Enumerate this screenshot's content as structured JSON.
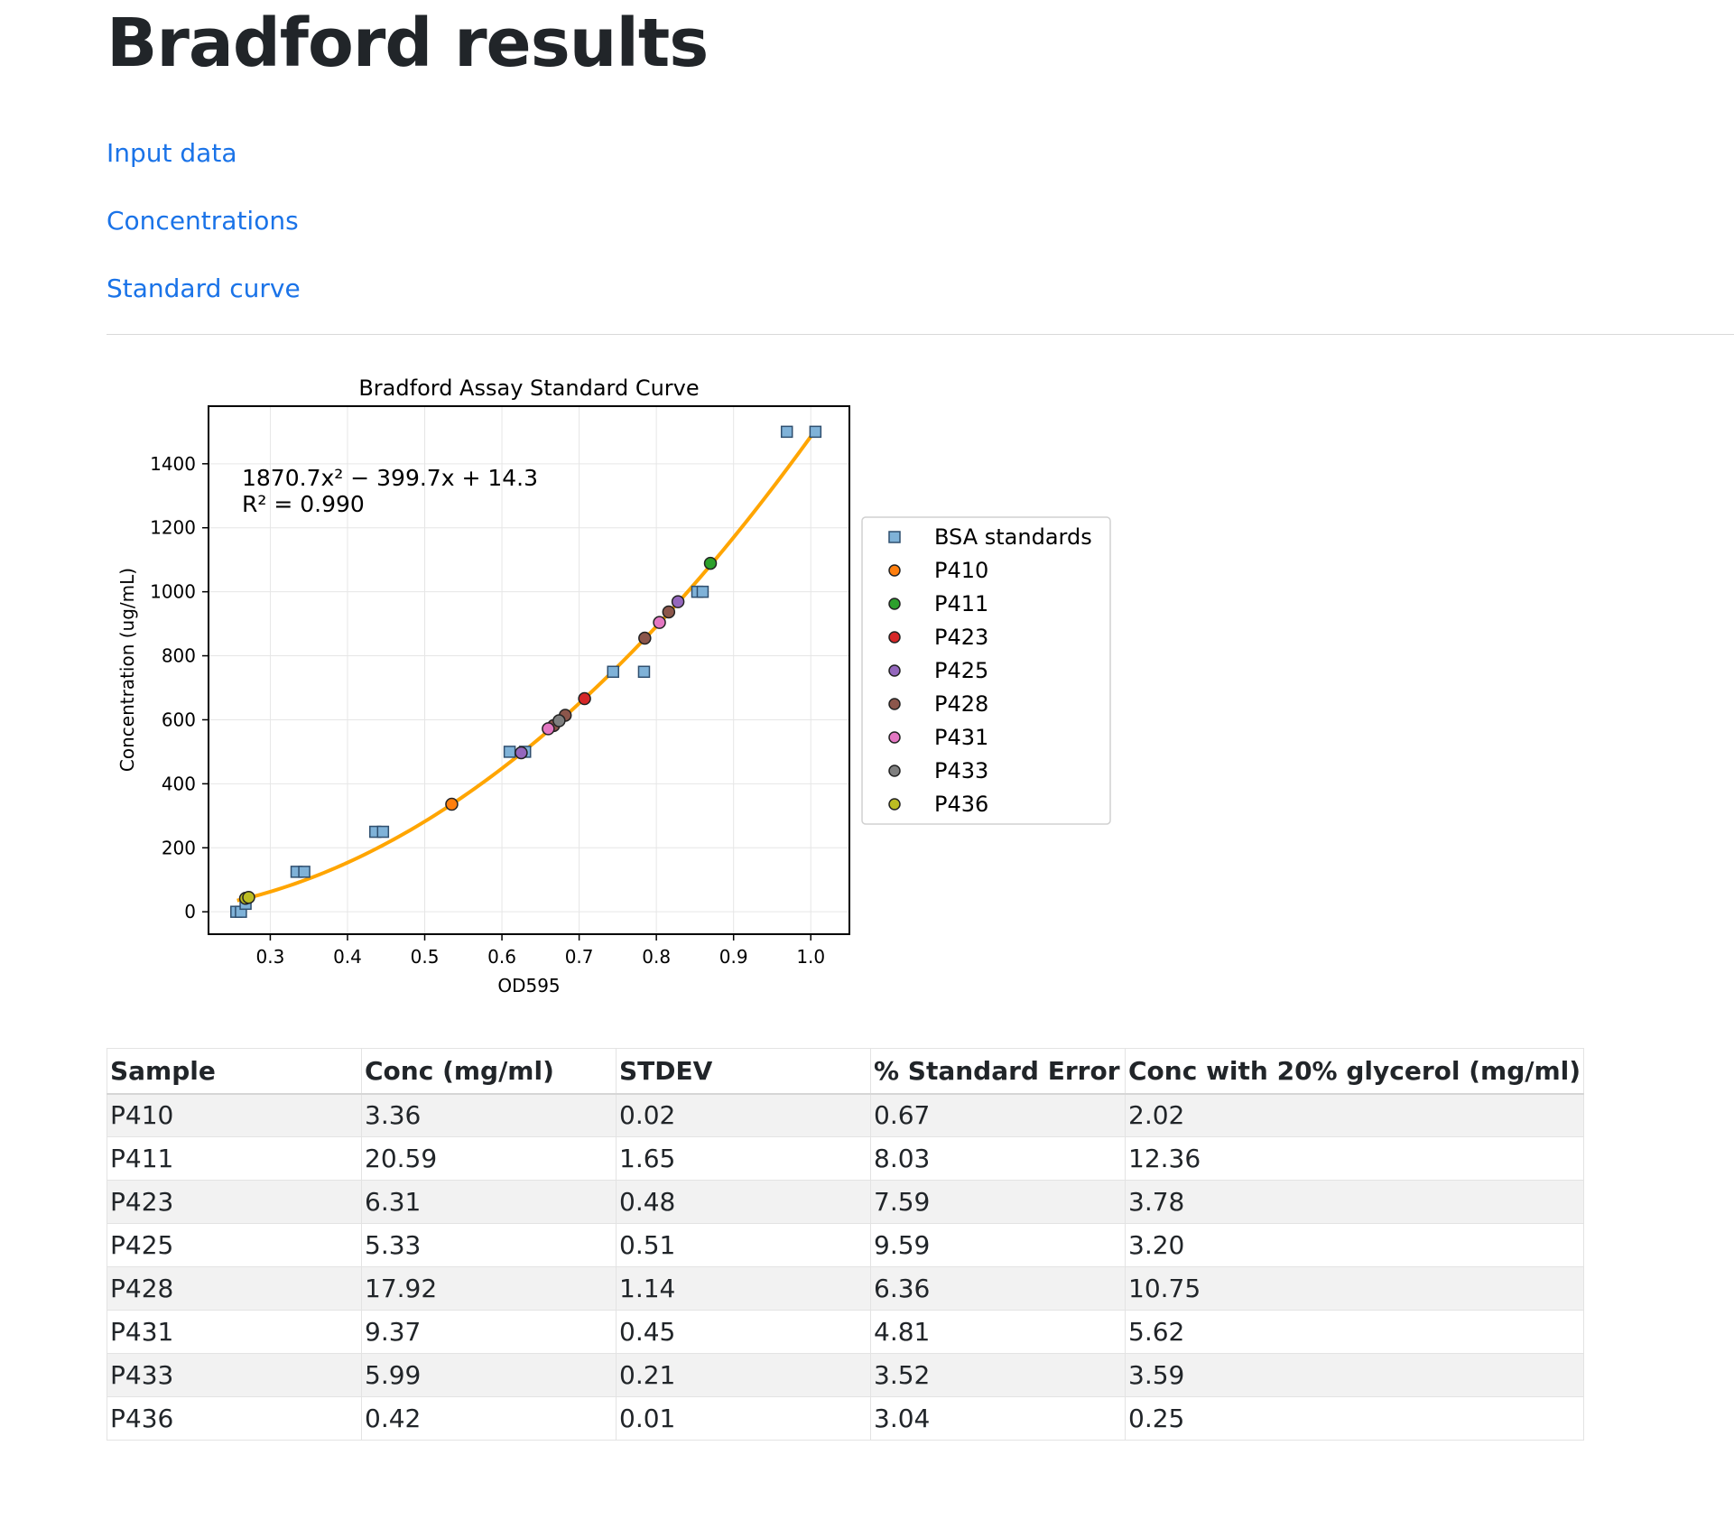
{
  "page": {
    "title": "Bradford results",
    "nav_links": [
      "Input data",
      "Concentrations",
      "Standard curve"
    ]
  },
  "chart_data": {
    "type": "scatter",
    "title": "Bradford Assay Standard Curve",
    "xlabel": "OD595",
    "ylabel": "Concentration (ug/mL)",
    "xlim": [
      0.22,
      1.05
    ],
    "ylim": [
      -70,
      1580
    ],
    "x_ticks": [
      0.3,
      0.4,
      0.5,
      0.6,
      0.7,
      0.8,
      0.9,
      1.0
    ],
    "x_tick_labels": [
      "0.3",
      "0.4",
      "0.5",
      "0.6",
      "0.7",
      "0.8",
      "0.9",
      "1.0"
    ],
    "y_ticks": [
      0,
      200,
      400,
      600,
      800,
      1000,
      1200,
      1400
    ],
    "y_tick_labels": [
      "0",
      "200",
      "400",
      "600",
      "800",
      "1000",
      "1200",
      "1400"
    ],
    "grid": true,
    "legend_position": "outside-right",
    "equation_text": "1870.7x² − 399.7x + 14.3",
    "r2_text": "R² = 0.990",
    "fit": {
      "a": 1870.7,
      "b": -399.7,
      "c": 14.3,
      "x_range": [
        0.257,
        1.007
      ],
      "color": "#ffa500"
    },
    "series": [
      {
        "name": "BSA standards",
        "marker": "square",
        "color": "#7fb2d8",
        "x": [
          0.256,
          0.262,
          0.268,
          0.334,
          0.344,
          0.436,
          0.446,
          0.61,
          0.63,
          0.744,
          0.784,
          0.853,
          0.86,
          0.969,
          1.006
        ],
        "y": [
          0,
          0,
          25,
          125,
          125,
          250,
          250,
          500,
          500,
          750,
          750,
          1000,
          1000,
          1500,
          1500
        ]
      },
      {
        "name": "P410",
        "marker": "circle",
        "color": "#ff7f0e",
        "x": [
          0.535
        ],
        "y": [
          336
        ]
      },
      {
        "name": "P411",
        "marker": "circle",
        "color": "#2ca02c",
        "x": [
          0.87
        ],
        "y": [
          1089
        ]
      },
      {
        "name": "P423",
        "marker": "circle",
        "color": "#d62728",
        "x": [
          0.707
        ],
        "y": [
          666
        ]
      },
      {
        "name": "P425",
        "marker": "circle",
        "color": "#9467bd",
        "x": [
          0.625,
          0.828
        ],
        "y": [
          497,
          969
        ]
      },
      {
        "name": "P428",
        "marker": "circle",
        "color": "#8c564b",
        "x": [
          0.667,
          0.682,
          0.785,
          0.816
        ],
        "y": [
          582,
          614,
          855,
          937
        ]
      },
      {
        "name": "P431",
        "marker": "circle",
        "color": "#e377c2",
        "x": [
          0.66,
          0.804
        ],
        "y": [
          572,
          904
        ]
      },
      {
        "name": "P433",
        "marker": "circle",
        "color": "#7f7f7f",
        "x": [
          0.674
        ],
        "y": [
          597
        ]
      },
      {
        "name": "P436",
        "marker": "circle",
        "color": "#bcbd22",
        "x": [
          0.268,
          0.272
        ],
        "y": [
          42,
          45
        ]
      }
    ]
  },
  "table": {
    "headers": [
      "Sample",
      "Conc (mg/ml)",
      "STDEV",
      "% Standard Error",
      "Conc with 20% glycerol (mg/ml)"
    ],
    "rows": [
      [
        "P410",
        "3.36",
        "0.02",
        "0.67",
        "2.02"
      ],
      [
        "P411",
        "20.59",
        "1.65",
        "8.03",
        "12.36"
      ],
      [
        "P423",
        "6.31",
        "0.48",
        "7.59",
        "3.78"
      ],
      [
        "P425",
        "5.33",
        "0.51",
        "9.59",
        "3.20"
      ],
      [
        "P428",
        "17.92",
        "1.14",
        "6.36",
        "10.75"
      ],
      [
        "P431",
        "9.37",
        "0.45",
        "4.81",
        "5.62"
      ],
      [
        "P433",
        "5.99",
        "0.21",
        "3.52",
        "3.59"
      ],
      [
        "P436",
        "0.42",
        "0.01",
        "3.04",
        "0.25"
      ]
    ]
  }
}
